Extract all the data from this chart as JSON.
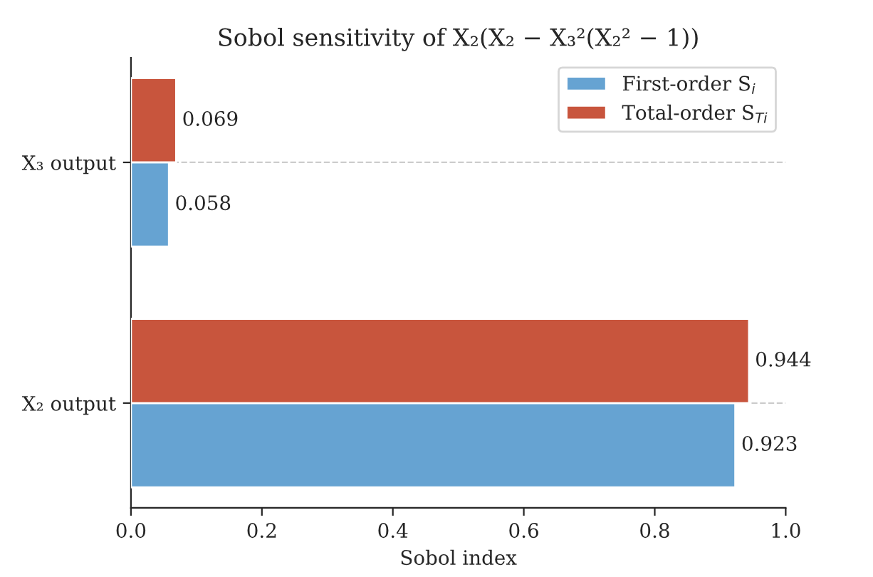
{
  "chart_data": {
    "type": "bar",
    "orientation": "horizontal",
    "title": "Sobol sensitivity of X₂(X₂ − X₃²(X₂² − 1))",
    "xlabel": "Sobol index",
    "categories": [
      "X₃ output",
      "X₂ output"
    ],
    "series": [
      {
        "name": "First-order S$_{i}$",
        "color": "#66a3d2",
        "values": [
          0.058,
          0.923
        ]
      },
      {
        "name": "Total-order S$_{Ti}$",
        "color": "#c8553d",
        "values": [
          0.069,
          0.944
        ]
      }
    ],
    "xlim": [
      0,
      1
    ],
    "xticks": [
      {
        "value": 0,
        "label": "0.0"
      },
      {
        "value": 0.2,
        "label": "0.2"
      },
      {
        "value": 0.4,
        "label": "0.4"
      },
      {
        "value": 0.6,
        "label": "0.6"
      },
      {
        "value": 0.8,
        "label": "0.8"
      },
      {
        "value": 1,
        "label": "1.0"
      }
    ],
    "data_labels": true,
    "grid": "y",
    "legend": "top right"
  }
}
